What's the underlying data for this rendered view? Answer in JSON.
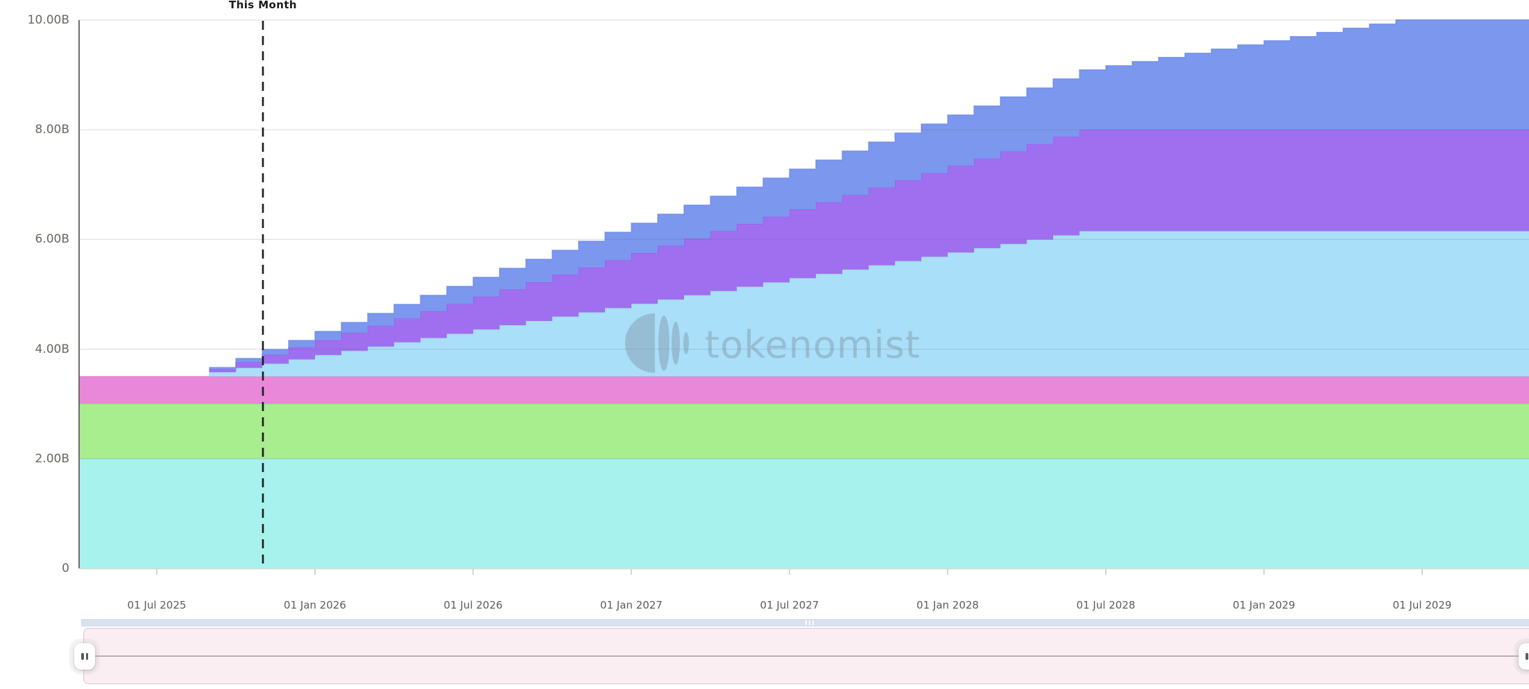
{
  "chart": {
    "this_month_label": "This Month",
    "watermark": "tokenomist",
    "y_axis": {
      "labels": [
        "10.00B",
        "8.00B",
        "6.00B",
        "4.00B",
        "2.00B",
        "0"
      ],
      "values": [
        10,
        8,
        6,
        4,
        2,
        0
      ]
    },
    "x_axis": {
      "labels": [
        "01 Jul 2025",
        "01 Jan 2026",
        "01 Jul 2026",
        "01 Jan 2027",
        "01 Jul 2027",
        "01 Jan 2028",
        "01 Jul 2028",
        "01 Jan 2029",
        "01 Jul 2029"
      ],
      "month_offsets": [
        3,
        9,
        15,
        21,
        27,
        33,
        39,
        45,
        51
      ]
    },
    "colors": {
      "axis_line": "#56514f",
      "grid_line": "rgba(105,115,130,0.22)",
      "bottom_line": "#d9d9d9",
      "tick": "#c9c9c9",
      "this_month_line": "#1a1a1a",
      "watermark_fill": "rgba(122,138,156,0.40)"
    }
  },
  "chart_data": {
    "type": "area",
    "stacking": "normal",
    "step": true,
    "title": "",
    "xlabel": "",
    "ylabel": "",
    "ylim": [
      0,
      10
    ],
    "unit": "B tokens",
    "this_month": "2025-11",
    "x": [
      "2025-04",
      "2025-05",
      "2025-06",
      "2025-07",
      "2025-08",
      "2025-09",
      "2025-10",
      "2025-11",
      "2025-12",
      "2026-01",
      "2026-02",
      "2026-03",
      "2026-04",
      "2026-05",
      "2026-06",
      "2026-07",
      "2026-08",
      "2026-09",
      "2026-10",
      "2026-11",
      "2026-12",
      "2027-01",
      "2027-02",
      "2027-03",
      "2027-04",
      "2027-05",
      "2027-06",
      "2027-07",
      "2027-08",
      "2027-09",
      "2027-10",
      "2027-11",
      "2027-12",
      "2028-01",
      "2028-02",
      "2028-03",
      "2028-04",
      "2028-05",
      "2028-06",
      "2028-07",
      "2028-08",
      "2028-09",
      "2028-10",
      "2028-11",
      "2028-12",
      "2029-01",
      "2029-02",
      "2029-03",
      "2029-04",
      "2029-05",
      "2029-06",
      "2029-07",
      "2029-08",
      "2029-09",
      "2029-10"
    ],
    "series": [
      {
        "name": "band-cyan",
        "color": "#a8f2ee",
        "line": "#8ce4de",
        "values": [
          2,
          2,
          2,
          2,
          2,
          2,
          2,
          2,
          2,
          2,
          2,
          2,
          2,
          2,
          2,
          2,
          2,
          2,
          2,
          2,
          2,
          2,
          2,
          2,
          2,
          2,
          2,
          2,
          2,
          2,
          2,
          2,
          2,
          2,
          2,
          2,
          2,
          2,
          2,
          2,
          2,
          2,
          2,
          2,
          2,
          2,
          2,
          2,
          2,
          2,
          2,
          2,
          2,
          2,
          2
        ]
      },
      {
        "name": "band-green",
        "color": "#a8ed8e",
        "line": "#92df75",
        "values": [
          1,
          1,
          1,
          1,
          1,
          1,
          1,
          1,
          1,
          1,
          1,
          1,
          1,
          1,
          1,
          1,
          1,
          1,
          1,
          1,
          1,
          1,
          1,
          1,
          1,
          1,
          1,
          1,
          1,
          1,
          1,
          1,
          1,
          1,
          1,
          1,
          1,
          1,
          1,
          1,
          1,
          1,
          1,
          1,
          1,
          1,
          1,
          1,
          1,
          1,
          1,
          1,
          1,
          1,
          1
        ]
      },
      {
        "name": "band-pink",
        "color": "#e988d9",
        "line": "#de6fc9",
        "values": [
          0.5,
          0.5,
          0.5,
          0.5,
          0.5,
          0.5,
          0.5,
          0.5,
          0.5,
          0.5,
          0.5,
          0.5,
          0.5,
          0.5,
          0.5,
          0.5,
          0.5,
          0.5,
          0.5,
          0.5,
          0.5,
          0.5,
          0.5,
          0.5,
          0.5,
          0.5,
          0.5,
          0.5,
          0.5,
          0.5,
          0.5,
          0.5,
          0.5,
          0.5,
          0.5,
          0.5,
          0.5,
          0.5,
          0.5,
          0.5,
          0.5,
          0.5,
          0.5,
          0.5,
          0.5,
          0.5,
          0.5,
          0.5,
          0.5,
          0.5,
          0.5,
          0.5,
          0.5,
          0.5,
          0.5
        ]
      },
      {
        "name": "band-skyblue",
        "color": "#a9dff8",
        "line": "#8fcdee",
        "values": [
          0,
          0,
          0,
          0,
          0,
          0.078,
          0.156,
          0.234,
          0.312,
          0.39,
          0.468,
          0.546,
          0.624,
          0.702,
          0.78,
          0.858,
          0.936,
          1.014,
          1.092,
          1.17,
          1.248,
          1.326,
          1.404,
          1.482,
          1.56,
          1.638,
          1.716,
          1.794,
          1.872,
          1.95,
          2.028,
          2.106,
          2.184,
          2.262,
          2.34,
          2.418,
          2.496,
          2.574,
          2.652,
          2.652,
          2.652,
          2.652,
          2.652,
          2.652,
          2.652,
          2.652,
          2.652,
          2.652,
          2.652,
          2.652,
          2.652,
          2.652,
          2.652,
          2.652,
          2.652
        ]
      },
      {
        "name": "band-purple",
        "color": "#9f6ff0",
        "line": "#8c59e4",
        "values": [
          0,
          0,
          0,
          0,
          0,
          0.055,
          0.109,
          0.164,
          0.218,
          0.273,
          0.327,
          0.382,
          0.436,
          0.491,
          0.545,
          0.6,
          0.654,
          0.709,
          0.763,
          0.818,
          0.872,
          0.927,
          0.981,
          1.036,
          1.09,
          1.145,
          1.199,
          1.254,
          1.308,
          1.363,
          1.417,
          1.472,
          1.526,
          1.581,
          1.635,
          1.69,
          1.744,
          1.799,
          1.853,
          1.853,
          1.853,
          1.853,
          1.853,
          1.853,
          1.853,
          1.853,
          1.853,
          1.853,
          1.853,
          1.853,
          1.853,
          1.853,
          1.853,
          1.853,
          1.853
        ]
      },
      {
        "name": "band-blue",
        "color": "#7b97ee",
        "line": "#6684e2",
        "values": [
          0,
          0,
          0,
          0,
          0,
          0.032,
          0.064,
          0.096,
          0.128,
          0.16,
          0.192,
          0.224,
          0.256,
          0.288,
          0.32,
          0.352,
          0.384,
          0.416,
          0.448,
          0.48,
          0.512,
          0.544,
          0.576,
          0.608,
          0.64,
          0.672,
          0.704,
          0.736,
          0.768,
          0.8,
          0.832,
          0.864,
          0.896,
          0.928,
          0.96,
          0.992,
          1.024,
          1.056,
          1.088,
          1.164,
          1.24,
          1.316,
          1.392,
          1.468,
          1.544,
          1.62,
          1.696,
          1.772,
          1.848,
          1.924,
          2,
          2,
          2,
          2,
          2
        ]
      }
    ]
  },
  "navigator": {
    "left_handle_grip": "drag-handle",
    "right_handle_grip": "drag-handle",
    "scrollbar_grip": "scrollbar-grip"
  }
}
